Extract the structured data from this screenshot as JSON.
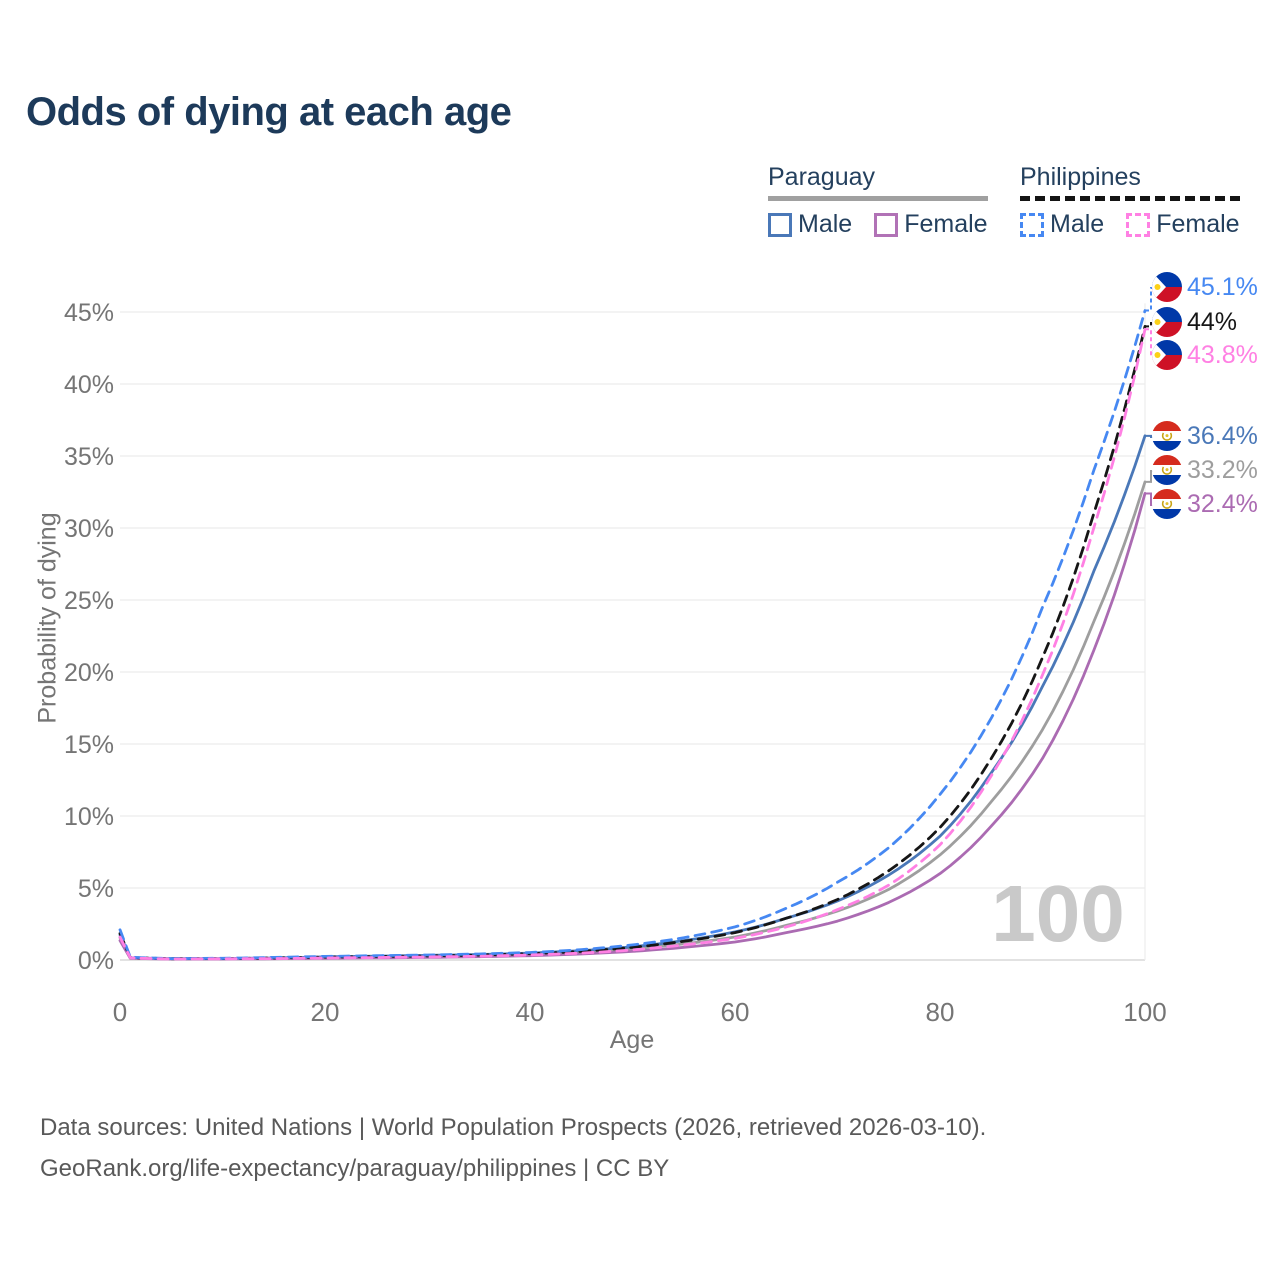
{
  "page": {
    "title": "Odds of dying at each age"
  },
  "legend": {
    "groups": [
      {
        "label": "Paraguay",
        "line_style": "solid",
        "underline_color": "#a0a0a0",
        "items": [
          {
            "label": "Male",
            "color": "#4a78b8",
            "dashed": false
          },
          {
            "label": "Female",
            "color": "#b172b6",
            "dashed": false
          }
        ]
      },
      {
        "label": "Philippines",
        "line_style": "dashed",
        "underline_color": "#141414",
        "items": [
          {
            "label": "Male",
            "color": "#4688f2",
            "dashed": true
          },
          {
            "label": "Female",
            "color": "#ff80e3",
            "dashed": true
          }
        ]
      }
    ]
  },
  "chart_data": {
    "type": "line",
    "title": "Odds of dying at each age",
    "xlabel": "Age",
    "ylabel": "Probability of dying",
    "xlim": [
      0,
      100
    ],
    "ylim_percent": [
      0,
      46
    ],
    "grid": "horizontal",
    "legend_position": "top-right",
    "hover_age_label": "100",
    "values_unit": "percent probability of dying",
    "x_ticks": [
      {
        "value": 0,
        "label": "0"
      },
      {
        "value": 20,
        "label": "20"
      },
      {
        "value": 40,
        "label": "40"
      },
      {
        "value": 60,
        "label": "60"
      },
      {
        "value": 80,
        "label": "80"
      },
      {
        "value": 100,
        "label": "100"
      }
    ],
    "y_ticks": [
      {
        "value": 0,
        "label": "0%"
      },
      {
        "value": 5,
        "label": "5%"
      },
      {
        "value": 10,
        "label": "10%"
      },
      {
        "value": 15,
        "label": "15%"
      },
      {
        "value": 20,
        "label": "20%"
      },
      {
        "value": 25,
        "label": "25%"
      },
      {
        "value": 30,
        "label": "30%"
      },
      {
        "value": 35,
        "label": "35%"
      },
      {
        "value": 40,
        "label": "40%"
      },
      {
        "value": 45,
        "label": "45%"
      }
    ],
    "ages": [
      0,
      1,
      5,
      10,
      15,
      20,
      25,
      30,
      35,
      40,
      45,
      50,
      55,
      60,
      65,
      70,
      75,
      80,
      85,
      90,
      95,
      100
    ],
    "series": [
      {
        "id": "paraguay-total",
        "name": "Paraguay",
        "country": "Paraguay",
        "sex": "Both",
        "color": "#9e9e9e",
        "dashed": false,
        "end_label": "33.2%",
        "values": [
          1.55,
          0.14,
          0.08,
          0.09,
          0.12,
          0.18,
          0.22,
          0.26,
          0.31,
          0.4,
          0.55,
          0.78,
          1.12,
          1.6,
          2.4,
          3.4,
          4.9,
          7.3,
          11.0,
          16.0,
          23.5,
          33.2
        ]
      },
      {
        "id": "paraguay-male",
        "name": "Paraguay Male",
        "country": "Paraguay",
        "sex": "Male",
        "color": "#4a78b8",
        "dashed": false,
        "end_label": "36.4%",
        "values": [
          1.75,
          0.16,
          0.09,
          0.1,
          0.14,
          0.22,
          0.27,
          0.32,
          0.38,
          0.48,
          0.65,
          0.92,
          1.35,
          1.95,
          2.9,
          4.1,
          5.9,
          8.6,
          13.0,
          19.0,
          27.0,
          36.4
        ]
      },
      {
        "id": "paraguay-female",
        "name": "Paraguay Female",
        "country": "Paraguay",
        "sex": "Female",
        "color": "#ab6bb2",
        "dashed": false,
        "end_label": "32.4%",
        "values": [
          1.35,
          0.12,
          0.07,
          0.07,
          0.09,
          0.12,
          0.15,
          0.18,
          0.23,
          0.3,
          0.42,
          0.6,
          0.88,
          1.25,
          1.9,
          2.7,
          4.0,
          6.0,
          9.3,
          14.0,
          21.5,
          32.4
        ]
      },
      {
        "id": "philippines-total",
        "name": "Philippines",
        "country": "Philippines",
        "sex": "Both",
        "color": "#161616",
        "dashed": true,
        "end_label": "44%",
        "values": [
          1.85,
          0.17,
          0.09,
          0.1,
          0.14,
          0.2,
          0.24,
          0.28,
          0.34,
          0.44,
          0.6,
          0.88,
          1.3,
          1.9,
          2.9,
          4.2,
          6.2,
          9.2,
          14.0,
          21.0,
          31.0,
          44.0
        ]
      },
      {
        "id": "philippines-male",
        "name": "Philippines Male",
        "country": "Philippines",
        "sex": "Male",
        "color": "#4688f2",
        "dashed": true,
        "end_label": "45.1%",
        "values": [
          2.1,
          0.2,
          0.1,
          0.12,
          0.18,
          0.25,
          0.3,
          0.35,
          0.42,
          0.52,
          0.72,
          1.05,
          1.55,
          2.3,
          3.6,
          5.4,
          7.8,
          11.5,
          16.8,
          24.5,
          34.0,
          45.1
        ]
      },
      {
        "id": "philippines-female",
        "name": "Philippines Female",
        "country": "Philippines",
        "sex": "Female",
        "color": "#ff80e3",
        "dashed": true,
        "end_label": "43.8%",
        "values": [
          1.6,
          0.15,
          0.07,
          0.08,
          0.1,
          0.14,
          0.17,
          0.21,
          0.26,
          0.35,
          0.48,
          0.7,
          1.05,
          1.5,
          2.3,
          3.5,
          5.2,
          8.0,
          12.8,
          19.8,
          30.0,
          43.8
        ]
      }
    ]
  },
  "footer": {
    "line1": "Data sources: United Nations | World Population Prospects (2026, retrieved 2026-03-10).",
    "line2": "GeoRank.org/life-expectancy/paraguay/philippines | CC BY"
  }
}
